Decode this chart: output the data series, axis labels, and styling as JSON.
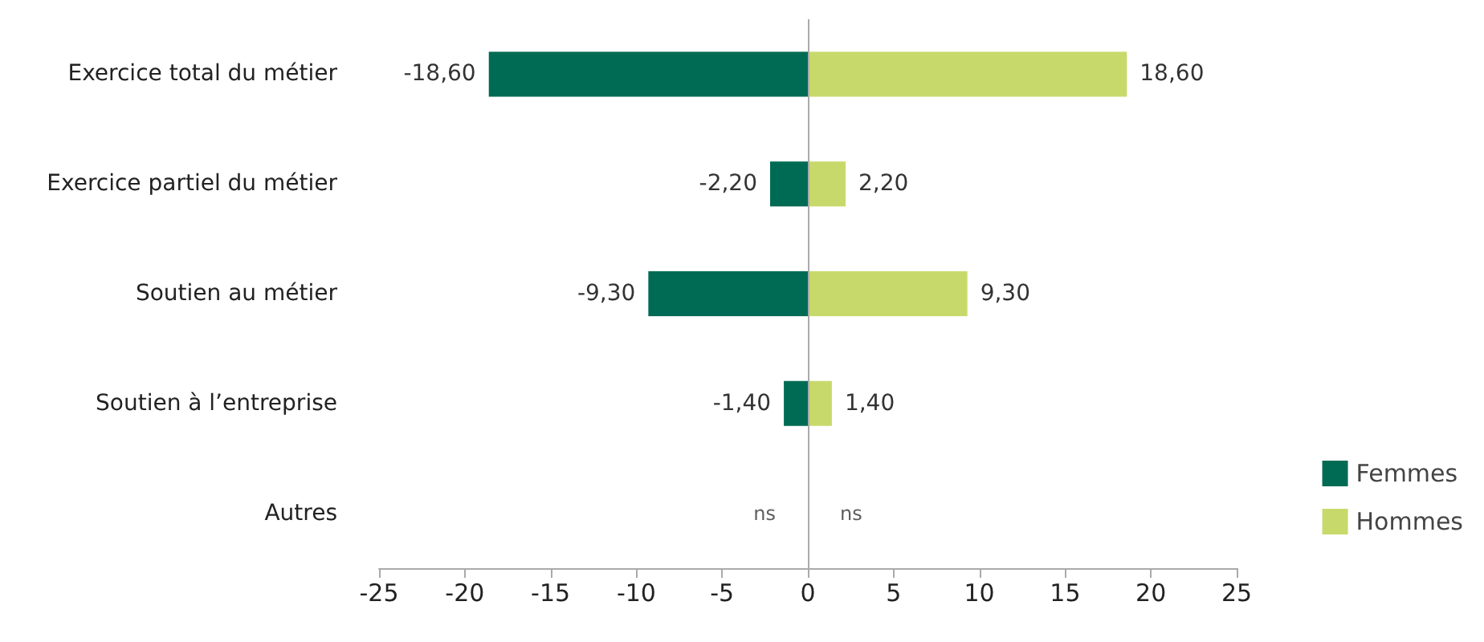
{
  "chart_data": {
    "type": "bar",
    "orientation": "horizontal",
    "categories": [
      "Exercice total du métier",
      "Exercice partiel du métier",
      "Soutien au métier",
      "Soutien à l’entreprise",
      "Autres"
    ],
    "series": [
      {
        "name": "Femmes",
        "color": "#006b54",
        "values": [
          -18.6,
          -2.2,
          -9.3,
          -1.4,
          null
        ],
        "value_labels": [
          "-18,60",
          "-2,20",
          "-9,30",
          "-1,40",
          "ns"
        ]
      },
      {
        "name": "Hommes",
        "color": "#c8d96b",
        "values": [
          18.6,
          2.2,
          9.3,
          1.4,
          null
        ],
        "value_labels": [
          "18,60",
          "2,20",
          "9,30",
          "1,40",
          "ns"
        ]
      }
    ],
    "stacked": true,
    "ref_lines": [
      {
        "axis": "x",
        "value": 0,
        "color": "#aaaaaa"
      }
    ],
    "xlim": [
      -25,
      25
    ],
    "xticks": [
      -25,
      -20,
      -15,
      -10,
      -5,
      0,
      5,
      10,
      15,
      20,
      25
    ],
    "grid": false,
    "legend": "bottom right"
  }
}
